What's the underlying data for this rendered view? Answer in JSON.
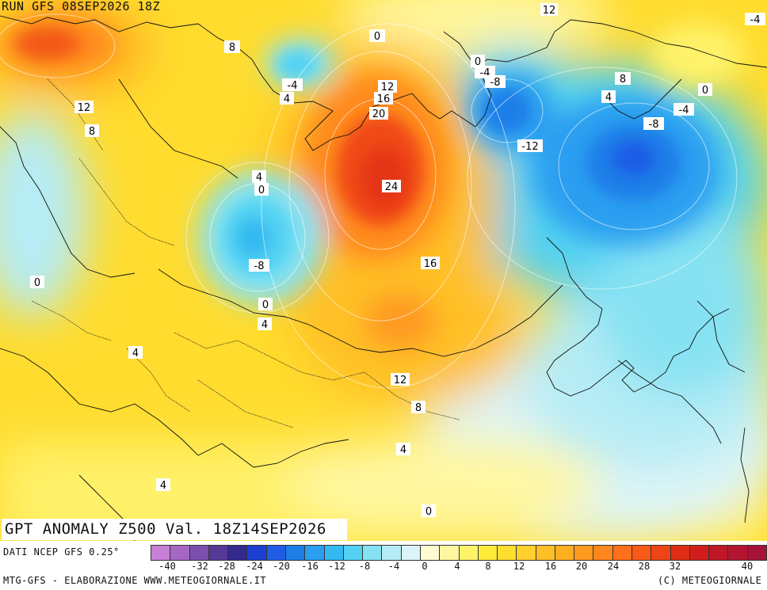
{
  "header": {
    "run_label": "RUN GFS 08SEP2026 18Z"
  },
  "map_title": "GPT ANOMALY Z500 Val. 18Z14SEP2026",
  "footer": {
    "source": "DATI NCEP GFS 0.25°",
    "credit": "MTG-GFS - ELABORAZIONE WWW.METEOGIORNALE.IT",
    "copyright": "(C) METEOGIORNALE"
  },
  "legend": {
    "ticks": [
      "-40",
      "-32",
      "-28",
      "-24",
      "-20",
      "-16",
      "-12",
      "-8",
      "-4",
      "0",
      "4",
      "8",
      "12",
      "16",
      "20",
      "24",
      "28",
      "32",
      "40"
    ],
    "colors": [
      "#c87fd6",
      "#a567c4",
      "#7c4fae",
      "#563896",
      "#332a8f",
      "#1b3fd0",
      "#1f5ce6",
      "#1e7ee8",
      "#2a9ef0",
      "#33b9f1",
      "#52d2f2",
      "#86e2f2",
      "#b6ecf5",
      "#dbf4f7",
      "#fffbd0",
      "#fff7a0",
      "#fff36a",
      "#ffec3a",
      "#ffde2e",
      "#ffd02b",
      "#ffbf26",
      "#ffae22",
      "#ff9a20",
      "#ff861d",
      "#ff701a",
      "#f95a18",
      "#ee4416",
      "#e02d16",
      "#d21d1c",
      "#c01727",
      "#b21530",
      "#a51338"
    ]
  },
  "contour_labels": [
    "12",
    "-4",
    "0",
    "8",
    "0",
    "-4",
    "-8",
    "8",
    "-4",
    "4",
    "12",
    "16",
    "4",
    "0",
    "12",
    "8",
    "20",
    "-8",
    "4",
    "0",
    "-4",
    "24",
    "-12",
    "-8",
    "16",
    "0",
    "0",
    "4",
    "4",
    "12",
    "8",
    "4",
    "4",
    "0"
  ]
}
